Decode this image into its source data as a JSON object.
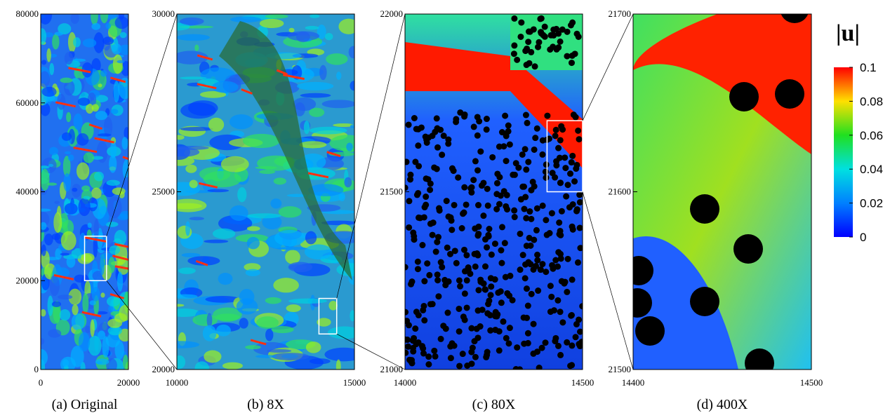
{
  "panels": [
    {
      "caption": "(a) Original",
      "xlim": [
        0,
        20000
      ],
      "ylim": [
        0,
        80000
      ],
      "xticks": [
        0,
        20000
      ],
      "yticks": [
        0,
        20000,
        40000,
        60000,
        80000
      ]
    },
    {
      "caption": "(b) 8X",
      "xlim": [
        10000,
        15000
      ],
      "ylim": [
        20000,
        30000
      ],
      "xticks": [
        10000,
        15000
      ],
      "yticks": [
        20000,
        25000,
        30000
      ]
    },
    {
      "caption": "(c) 80X",
      "xlim": [
        14000,
        14500
      ],
      "ylim": [
        21000,
        22000
      ],
      "xticks": [
        14000,
        14500
      ],
      "yticks": [
        21000,
        21500,
        22000
      ]
    },
    {
      "caption": "(d) 400X",
      "xlim": [
        14400,
        14500
      ],
      "ylim": [
        21500,
        21700
      ],
      "xticks": [
        14400,
        14500
      ],
      "yticks": [
        21500,
        21600,
        21700
      ]
    }
  ],
  "colorbar": {
    "title": "|u|",
    "lim": [
      0,
      0.1
    ],
    "ticks": [
      0,
      0.02,
      0.04,
      0.06,
      0.08,
      0.1
    ]
  }
}
